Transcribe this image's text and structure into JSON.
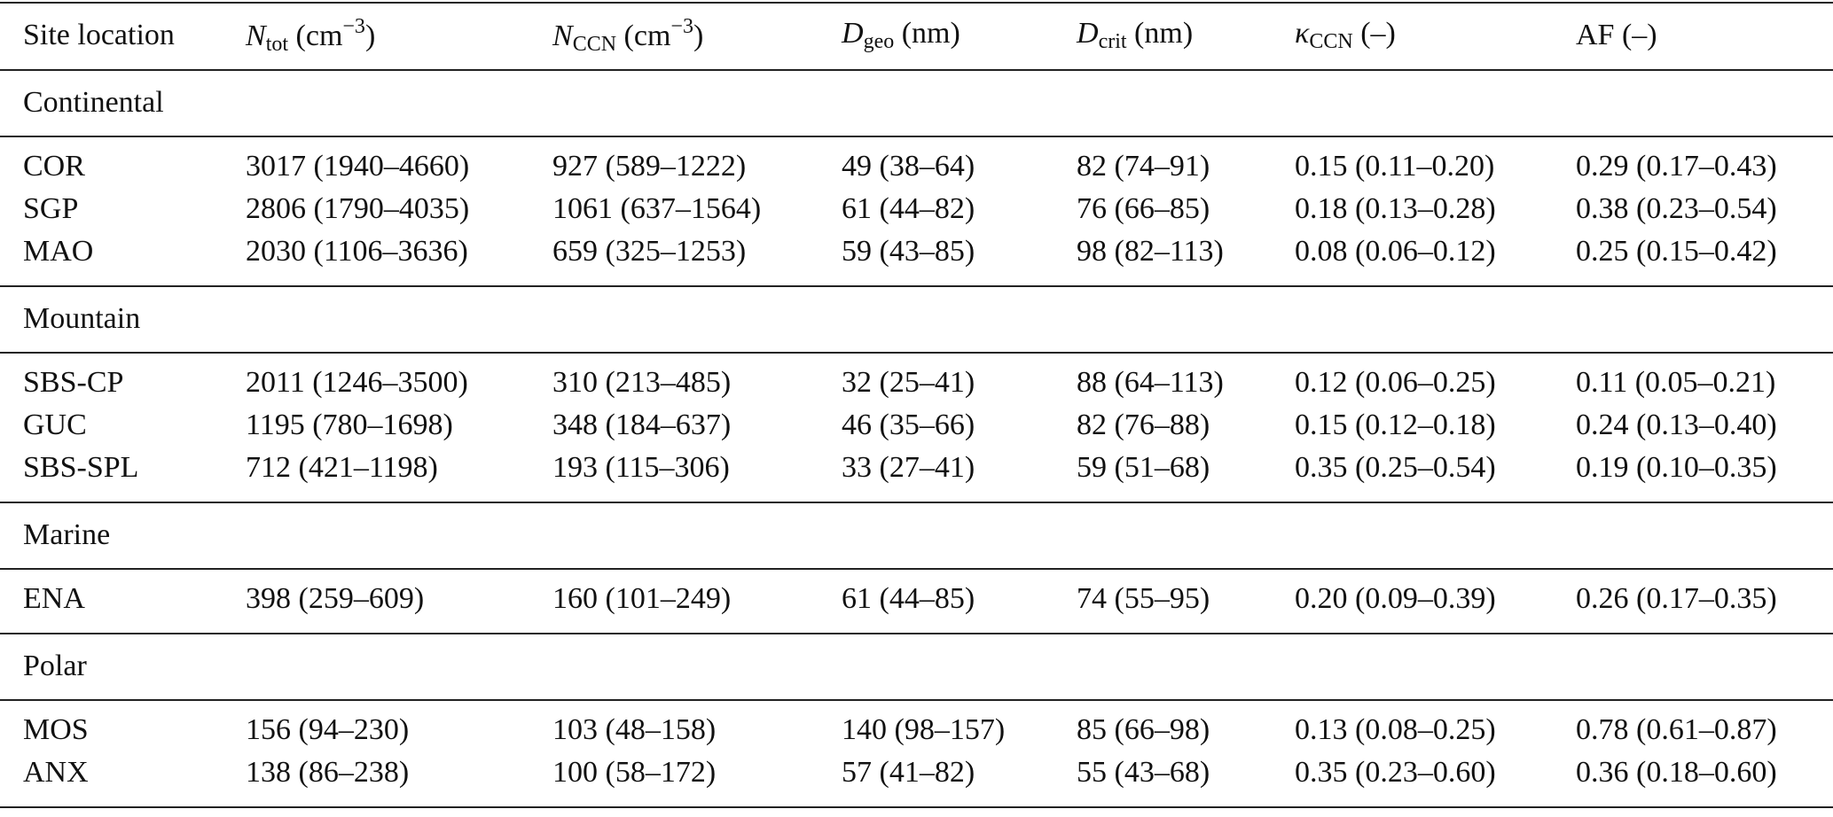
{
  "table": {
    "header": [
      [
        {
          "text": "Site location",
          "style": "normal"
        }
      ],
      [
        {
          "text": "N",
          "style": "italic"
        },
        {
          "text": "tot",
          "style": "sub"
        },
        {
          "text": " (cm",
          "style": "normal"
        },
        {
          "text": "−3",
          "style": "sup"
        },
        {
          "text": ")",
          "style": "normal"
        }
      ],
      [
        {
          "text": "N",
          "style": "italic"
        },
        {
          "text": "CCN",
          "style": "sub"
        },
        {
          "text": " (cm",
          "style": "normal"
        },
        {
          "text": "−3",
          "style": "sup"
        },
        {
          "text": ")",
          "style": "normal"
        }
      ],
      [
        {
          "text": "D",
          "style": "italic"
        },
        {
          "text": "geo",
          "style": "sub"
        },
        {
          "text": " (nm)",
          "style": "normal"
        }
      ],
      [
        {
          "text": "D",
          "style": "italic"
        },
        {
          "text": "crit",
          "style": "sub"
        },
        {
          "text": " (nm)",
          "style": "normal"
        }
      ],
      [
        {
          "text": "κ",
          "style": "italic"
        },
        {
          "text": "CCN",
          "style": "sub"
        },
        {
          "text": " (–)",
          "style": "normal"
        }
      ],
      [
        {
          "text": "AF (–)",
          "style": "normal"
        }
      ]
    ],
    "groups": [
      {
        "name": "Continental",
        "rows": [
          [
            "COR",
            "3017 (1940–4660)",
            "927 (589–1222)",
            "49 (38–64)",
            "82 (74–91)",
            "0.15 (0.11–0.20)",
            "0.29 (0.17–0.43)"
          ],
          [
            "SGP",
            "2806 (1790–4035)",
            "1061 (637–1564)",
            "61 (44–82)",
            "76 (66–85)",
            "0.18 (0.13–0.28)",
            "0.38 (0.23–0.54)"
          ],
          [
            "MAO",
            "2030 (1106–3636)",
            "659 (325–1253)",
            "59 (43–85)",
            "98 (82–113)",
            "0.08 (0.06–0.12)",
            "0.25 (0.15–0.42)"
          ]
        ]
      },
      {
        "name": "Mountain",
        "rows": [
          [
            "SBS-CP",
            "2011 (1246–3500)",
            "310 (213–485)",
            "32 (25–41)",
            "88 (64–113)",
            "0.12 (0.06–0.25)",
            "0.11 (0.05–0.21)"
          ],
          [
            "GUC",
            "1195 (780–1698)",
            "348 (184–637)",
            "46 (35–66)",
            "82 (76–88)",
            "0.15 (0.12–0.18)",
            "0.24 (0.13–0.40)"
          ],
          [
            "SBS-SPL",
            "712 (421–1198)",
            "193 (115–306)",
            "33 (27–41)",
            "59 (51–68)",
            "0.35 (0.25–0.54)",
            "0.19 (0.10–0.35)"
          ]
        ]
      },
      {
        "name": "Marine",
        "rows": [
          [
            "ENA",
            "398 (259–609)",
            "160 (101–249)",
            "61 (44–85)",
            "74 (55–95)",
            "0.20 (0.09–0.39)",
            "0.26 (0.17–0.35)"
          ]
        ]
      },
      {
        "name": "Polar",
        "rows": [
          [
            "MOS",
            "156 (94–230)",
            "103 (48–158)",
            "140 (98–157)",
            "85 (66–98)",
            "0.13 (0.08–0.25)",
            "0.78 (0.61–0.87)"
          ],
          [
            "ANX",
            "138 (86–238)",
            "100 (58–172)",
            "57 (41–82)",
            "55 (43–68)",
            "0.35 (0.23–0.60)",
            "0.36 (0.18–0.60)"
          ]
        ]
      }
    ]
  }
}
